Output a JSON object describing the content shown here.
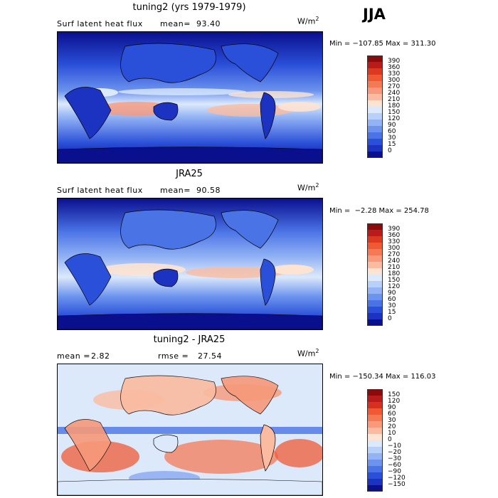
{
  "season": "JJA",
  "panels": [
    {
      "title": "tuning2 (yrs 1979-1979)",
      "left_label": "Surf latent heat flux",
      "stat_label": "mean=",
      "stat_value": "93.40",
      "unit_base": "W/m",
      "unit_exp": "2",
      "minmax": "Min = −107.85 Max = 311.30",
      "colorbar": {
        "levels": [
          "390",
          "360",
          "330",
          "300",
          "270",
          "240",
          "210",
          "180",
          "150",
          "120",
          "90",
          "60",
          "30",
          "15",
          "0"
        ],
        "colors": [
          "#8b0a0a",
          "#b91b1b",
          "#dc3a20",
          "#ef5a34",
          "#f47a55",
          "#f7997a",
          "#fabba0",
          "#fde3d2",
          "#dce9fb",
          "#b9d1f8",
          "#93b3f4",
          "#6c93ee",
          "#4a73e6",
          "#2a4fd9",
          "#1c33c2",
          "#0a0f8e"
        ]
      }
    },
    {
      "title": "JRA25",
      "left_label": "Surf latent heat flux",
      "stat_label": "mean=",
      "stat_value": "90.58",
      "unit_base": "W/m",
      "unit_exp": "2",
      "minmax": "Min =  −2.28 Max = 254.78",
      "colorbar": {
        "levels": [
          "390",
          "360",
          "330",
          "300",
          "270",
          "240",
          "210",
          "180",
          "150",
          "120",
          "90",
          "60",
          "30",
          "15",
          "0"
        ],
        "colors": [
          "#8b0a0a",
          "#b91b1b",
          "#dc3a20",
          "#ef5a34",
          "#f47a55",
          "#f7997a",
          "#fabba0",
          "#fde3d2",
          "#dce9fb",
          "#b9d1f8",
          "#93b3f4",
          "#6c93ee",
          "#4a73e6",
          "#2a4fd9",
          "#1c33c2",
          "#0a0f8e"
        ]
      }
    },
    {
      "title": "tuning2 - JRA25",
      "left_label": "mean =",
      "left_value": "2.82",
      "stat_label": "rmse =",
      "stat_value": "27.54",
      "unit_base": "W/m",
      "unit_exp": "2",
      "minmax": "Min = −150.34 Max = 116.03",
      "colorbar": {
        "levels": [
          "150",
          "120",
          "90",
          "60",
          "30",
          "20",
          "10",
          "0",
          "−10",
          "−20",
          "−30",
          "−60",
          "−90",
          "−120",
          "−150"
        ],
        "colors": [
          "#8b0a0a",
          "#b91b1b",
          "#d7301f",
          "#ef5a34",
          "#f47a55",
          "#f7997a",
          "#fabba0",
          "#fde3d2",
          "#dce9fb",
          "#b9d1f8",
          "#93b3f4",
          "#6c93ee",
          "#4a73e6",
          "#2a4fd9",
          "#1c33c2",
          "#0a0f8e"
        ]
      }
    }
  ]
}
